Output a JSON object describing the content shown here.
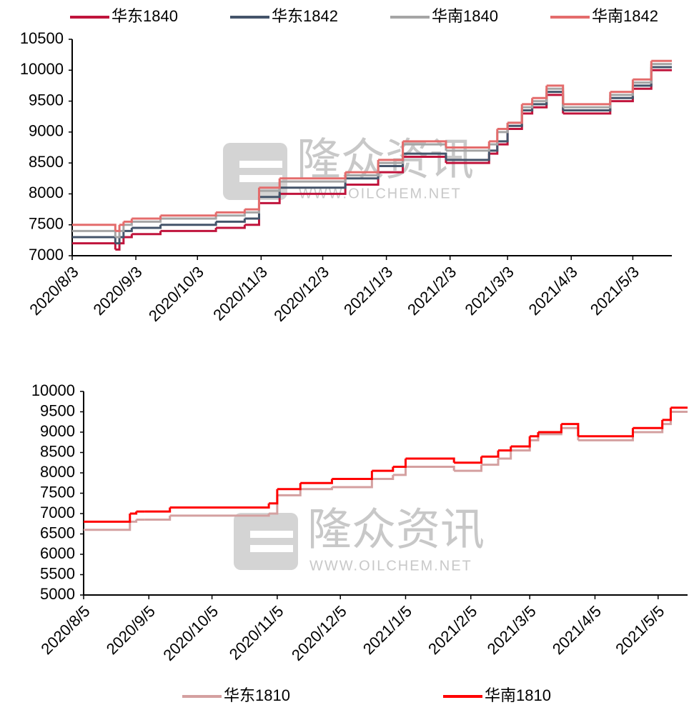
{
  "watermark": {
    "text": "隆众资讯",
    "url": "WWW.OILCHEM.NET"
  },
  "chart_data": [
    {
      "type": "line",
      "legend": "top",
      "x": [
        "2020/8/3",
        "2020/8/24",
        "2020/8/26",
        "2020/8/28",
        "2020/9/1",
        "2020/9/15",
        "2020/10/12",
        "2020/10/26",
        "2020/11/2",
        "2020/11/12",
        "2020/12/14",
        "2020/12/30",
        "2021/1/11",
        "2021/2/1",
        "2021/2/22",
        "2021/2/26",
        "2021/3/3",
        "2021/3/10",
        "2021/3/15",
        "2021/3/22",
        "2021/3/30",
        "2021/4/22",
        "2021/5/3",
        "2021/5/12",
        "2021/5/22"
      ],
      "series": [
        {
          "name": "华东1840",
          "color": "#c0143c",
          "values": [
            7200,
            7100,
            7200,
            7300,
            7350,
            7400,
            7450,
            7500,
            7850,
            8000,
            8150,
            8350,
            8600,
            8500,
            8650,
            8800,
            9050,
            9300,
            9400,
            9600,
            9300,
            9500,
            9700,
            10000,
            10000
          ]
        },
        {
          "name": "华东1842",
          "color": "#44546a",
          "values": [
            7300,
            7200,
            7300,
            7400,
            7450,
            7500,
            7550,
            7600,
            7950,
            8100,
            8250,
            8450,
            8650,
            8550,
            8700,
            8850,
            9100,
            9350,
            9450,
            9650,
            9350,
            9550,
            9750,
            10050,
            10050
          ]
        },
        {
          "name": "华南1840",
          "color": "#a5a5a5",
          "values": [
            7400,
            7300,
            7400,
            7500,
            7550,
            7600,
            7650,
            7700,
            8050,
            8200,
            8300,
            8500,
            8800,
            8700,
            8800,
            9000,
            9150,
            9400,
            9500,
            9700,
            9400,
            9600,
            9800,
            10100,
            10100
          ]
        },
        {
          "name": "华南1842",
          "color": "#e46c6c",
          "values": [
            7500,
            7400,
            7500,
            7550,
            7600,
            7650,
            7700,
            7750,
            8100,
            8250,
            8350,
            8550,
            8850,
            8750,
            8850,
            9050,
            9150,
            9450,
            9550,
            9750,
            9450,
            9650,
            9850,
            10150,
            10150
          ]
        }
      ],
      "xlim": [
        "2020/8/3",
        "2021/5/22"
      ],
      "xticks": [
        "2020/8/3",
        "2020/9/3",
        "2020/10/3",
        "2020/11/3",
        "2020/12/3",
        "2021/1/3",
        "2021/2/3",
        "2021/3/3",
        "2021/4/3",
        "2021/5/3"
      ],
      "ylim": [
        7000,
        10500
      ],
      "yticks": [
        7000,
        7500,
        8000,
        8500,
        9000,
        9500,
        10000,
        10500
      ]
    },
    {
      "type": "line",
      "legend": "bottom",
      "x": [
        "2020/8/5",
        "2020/8/27",
        "2020/8/30",
        "2020/9/3",
        "2020/9/15",
        "2020/11/1",
        "2020/11/5",
        "2020/11/16",
        "2020/12/1",
        "2020/12/20",
        "2020/12/30",
        "2021/1/5",
        "2021/1/28",
        "2021/2/10",
        "2021/2/18",
        "2021/2/24",
        "2021/3/5",
        "2021/3/9",
        "2021/3/20",
        "2021/3/28",
        "2021/4/23",
        "2021/5/7",
        "2021/5/11",
        "2021/5/19"
      ],
      "series": [
        {
          "name": "华东1810",
          "color": "#d4a0a0",
          "values": [
            6600,
            6800,
            6850,
            6850,
            6950,
            7000,
            7450,
            7600,
            7650,
            7850,
            7950,
            8150,
            8050,
            8200,
            8350,
            8550,
            8800,
            8950,
            9100,
            8800,
            9000,
            9200,
            9500,
            9500
          ]
        },
        {
          "name": "华南1810",
          "color": "#ff0000",
          "values": [
            6800,
            7000,
            7050,
            7050,
            7150,
            7250,
            7600,
            7750,
            7850,
            8050,
            8150,
            8350,
            8250,
            8400,
            8550,
            8650,
            8900,
            9000,
            9200,
            8900,
            9100,
            9300,
            9600,
            9600
          ]
        }
      ],
      "xlim": [
        "2020/8/5",
        "2021/5/19"
      ],
      "xticks": [
        "2020/8/5",
        "2020/9/5",
        "2020/10/5",
        "2020/11/5",
        "2020/12/5",
        "2021/1/5",
        "2021/2/5",
        "2021/3/5",
        "2021/4/5",
        "2021/5/5"
      ],
      "ylim": [
        5000,
        10000
      ],
      "yticks": [
        5000,
        5500,
        6000,
        6500,
        7000,
        7500,
        8000,
        8500,
        9000,
        9500,
        10000
      ]
    }
  ]
}
